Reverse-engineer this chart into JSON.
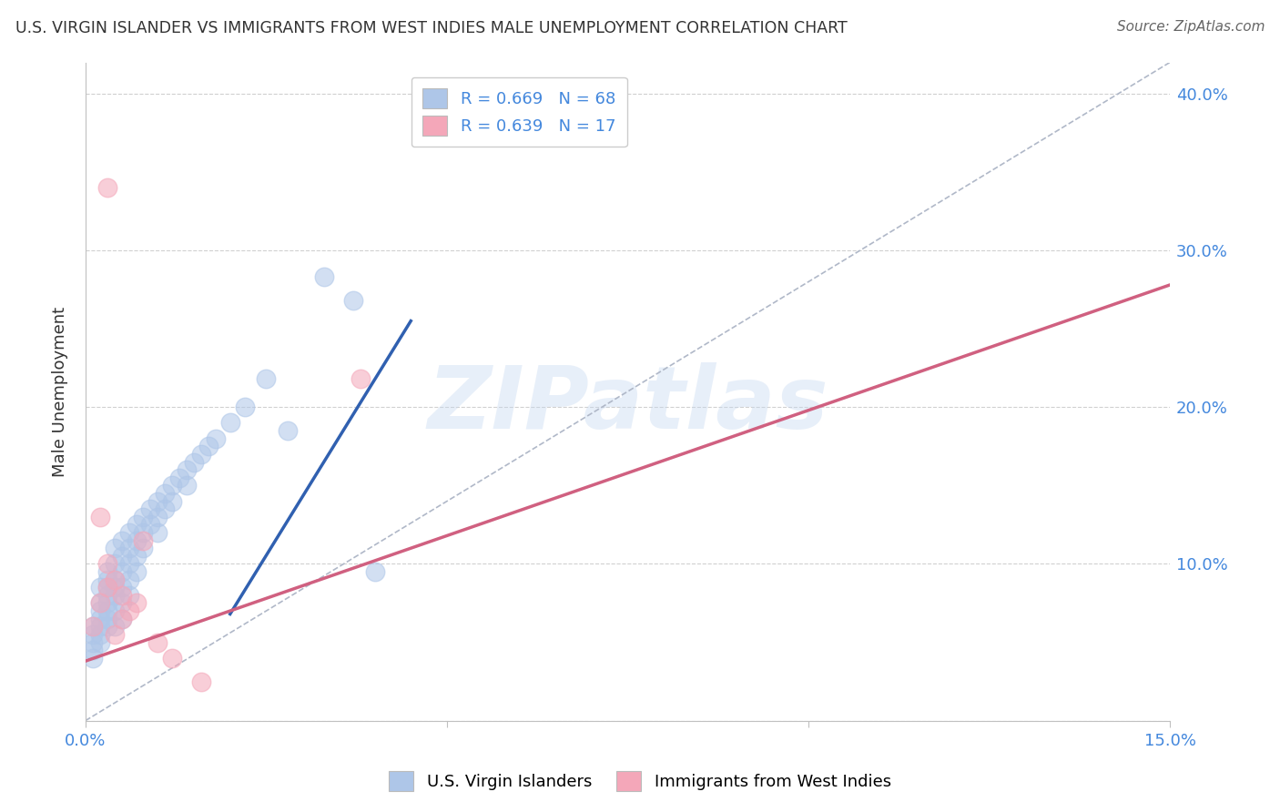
{
  "title": "U.S. VIRGIN ISLANDER VS IMMIGRANTS FROM WEST INDIES MALE UNEMPLOYMENT CORRELATION CHART",
  "source": "Source: ZipAtlas.com",
  "ylabel": "Male Unemployment",
  "xlim": [
    0.0,
    0.15
  ],
  "ylim": [
    0.0,
    0.42
  ],
  "xticks": [
    0.0,
    0.05,
    0.1,
    0.15
  ],
  "yticks": [
    0.1,
    0.2,
    0.3,
    0.4
  ],
  "blue_color": "#aec6e8",
  "pink_color": "#f4a7b9",
  "blue_line_color": "#3060b0",
  "pink_line_color": "#d06080",
  "dashed_line_color": "#b0b8c8",
  "legend_R_blue": "R = 0.669",
  "legend_N_blue": "N = 68",
  "legend_R_pink": "R = 0.639",
  "legend_N_pink": "N = 17",
  "watermark": "ZIPatlas",
  "blue_scatter_x": [
    0.001,
    0.001,
    0.001,
    0.001,
    0.001,
    0.002,
    0.002,
    0.002,
    0.002,
    0.002,
    0.002,
    0.002,
    0.003,
    0.003,
    0.003,
    0.003,
    0.003,
    0.003,
    0.003,
    0.003,
    0.004,
    0.004,
    0.004,
    0.004,
    0.004,
    0.004,
    0.004,
    0.005,
    0.005,
    0.005,
    0.005,
    0.005,
    0.005,
    0.006,
    0.006,
    0.006,
    0.006,
    0.006,
    0.007,
    0.007,
    0.007,
    0.007,
    0.008,
    0.008,
    0.008,
    0.009,
    0.009,
    0.01,
    0.01,
    0.01,
    0.011,
    0.011,
    0.012,
    0.012,
    0.013,
    0.014,
    0.014,
    0.015,
    0.016,
    0.017,
    0.018,
    0.02,
    0.022,
    0.025,
    0.028,
    0.033,
    0.037,
    0.04
  ],
  "blue_scatter_y": [
    0.06,
    0.055,
    0.05,
    0.045,
    0.04,
    0.085,
    0.075,
    0.07,
    0.065,
    0.06,
    0.055,
    0.05,
    0.095,
    0.09,
    0.085,
    0.08,
    0.075,
    0.07,
    0.065,
    0.06,
    0.11,
    0.1,
    0.09,
    0.085,
    0.08,
    0.07,
    0.06,
    0.115,
    0.105,
    0.095,
    0.085,
    0.075,
    0.065,
    0.12,
    0.11,
    0.1,
    0.09,
    0.08,
    0.125,
    0.115,
    0.105,
    0.095,
    0.13,
    0.12,
    0.11,
    0.135,
    0.125,
    0.14,
    0.13,
    0.12,
    0.145,
    0.135,
    0.15,
    0.14,
    0.155,
    0.16,
    0.15,
    0.165,
    0.17,
    0.175,
    0.18,
    0.19,
    0.2,
    0.218,
    0.185,
    0.283,
    0.268,
    0.095
  ],
  "pink_scatter_x": [
    0.001,
    0.002,
    0.002,
    0.003,
    0.003,
    0.004,
    0.004,
    0.005,
    0.005,
    0.006,
    0.007,
    0.008,
    0.01,
    0.012,
    0.016,
    0.038,
    0.003
  ],
  "pink_scatter_y": [
    0.06,
    0.075,
    0.13,
    0.085,
    0.1,
    0.09,
    0.055,
    0.08,
    0.065,
    0.07,
    0.075,
    0.115,
    0.05,
    0.04,
    0.025,
    0.218,
    0.34
  ],
  "blue_line_x": [
    0.02,
    0.045
  ],
  "blue_line_y": [
    0.068,
    0.255
  ],
  "pink_line_x": [
    0.0,
    0.15
  ],
  "pink_line_y": [
    0.038,
    0.278
  ],
  "diag_line_x": [
    0.0,
    0.15
  ],
  "diag_line_y": [
    0.0,
    0.42
  ]
}
